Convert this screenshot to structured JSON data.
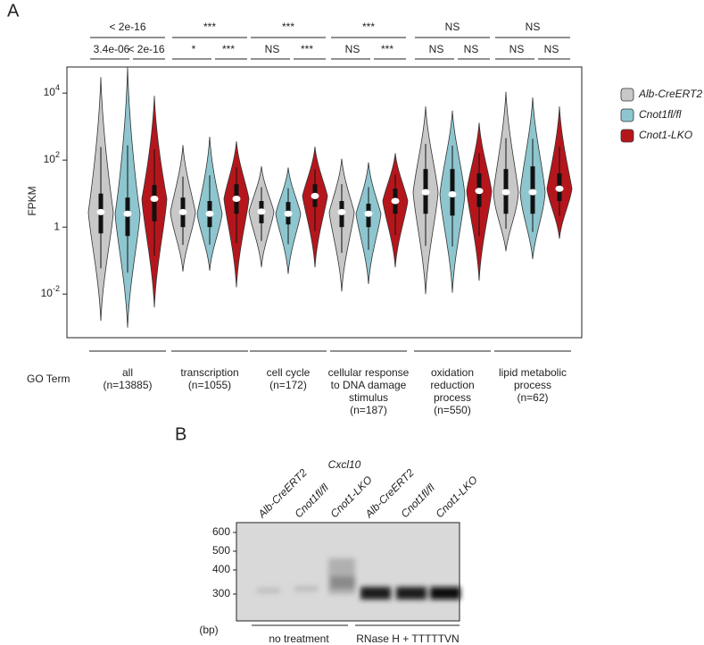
{
  "panel_labels": [
    "A",
    "B"
  ],
  "chart_data": {
    "type": "violin",
    "y_label": "FPKM",
    "x_label": "GO Term",
    "log_scale": true,
    "ylim": [
      0.0005,
      60000
    ],
    "yticks": [
      {
        "value": 0.01,
        "label": "10-2"
      },
      1,
      {
        "value": 100,
        "label": "102"
      },
      {
        "value": 10000,
        "label": "104"
      }
    ],
    "categories": [
      [
        "all",
        "(n=13885)"
      ],
      [
        "transcription",
        "(n=1055)"
      ],
      [
        "cell cycle",
        "(n=172)"
      ],
      [
        "cellular response",
        "to DNA damage",
        "stimulus",
        "(n=187)"
      ],
      [
        "oxidation",
        "reduction",
        "process",
        "(n=550)"
      ],
      [
        "lipid metabolic",
        "process",
        "(n=62)"
      ]
    ],
    "comparisons": [
      {
        "overall": "< 2e-16",
        "pairs": [
          "3.4e-06",
          "< 2e-16"
        ]
      },
      {
        "overall": "***",
        "pairs": [
          "*",
          "***"
        ]
      },
      {
        "overall": "***",
        "pairs": [
          "NS",
          "***"
        ]
      },
      {
        "overall": "***",
        "pairs": [
          "NS",
          "***"
        ]
      },
      {
        "overall": "NS",
        "pairs": [
          "NS",
          "NS"
        ]
      },
      {
        "overall": "NS",
        "pairs": [
          "NS",
          "NS"
        ]
      }
    ],
    "series": [
      {
        "name": "Alb-CreERT2",
        "color": "#c8c8c8",
        "values": [
          {
            "min": 0.0016,
            "q1": 0.65,
            "median": 2.8,
            "q3": 10,
            "max": 30000
          },
          {
            "min": 0.047,
            "q1": 1,
            "median": 2.8,
            "q3": 7.6,
            "max": 280
          },
          {
            "min": 0.063,
            "q1": 1.3,
            "median": 2.9,
            "q3": 6,
            "max": 65
          },
          {
            "min": 0.012,
            "q1": 1,
            "median": 2.8,
            "q3": 6,
            "max": 110
          },
          {
            "min": 0.01,
            "q1": 2.5,
            "median": 11,
            "q3": 54,
            "max": 4000
          },
          {
            "min": 0.19,
            "q1": 2.5,
            "median": 11,
            "q3": 54,
            "max": 11000
          }
        ]
      },
      {
        "name": "Cnot1fl/fl",
        "color": "#8ec6cf",
        "values": [
          {
            "min": 0.001,
            "q1": 0.54,
            "median": 2.5,
            "q3": 7.6,
            "max": 60000
          },
          {
            "min": 0.05,
            "q1": 1,
            "median": 2.5,
            "q3": 6,
            "max": 500
          },
          {
            "min": 0.04,
            "q1": 1.2,
            "median": 2.5,
            "q3": 5.6,
            "max": 60
          },
          {
            "min": 0.02,
            "q1": 1,
            "median": 2.5,
            "q3": 5,
            "max": 85
          },
          {
            "min": 0.011,
            "q1": 2.2,
            "median": 9.5,
            "q3": 54,
            "max": 3000
          },
          {
            "min": 0.11,
            "q1": 2.5,
            "median": 11,
            "q3": 65,
            "max": 7400
          }
        ]
      },
      {
        "name": "Cnot1-LKO",
        "color": "#b5161c",
        "values": [
          {
            "min": 0.004,
            "q1": 1.5,
            "median": 7,
            "q3": 18,
            "max": 8300
          },
          {
            "min": 0.016,
            "q1": 2.5,
            "median": 7,
            "q3": 19,
            "max": 360
          },
          {
            "min": 0.063,
            "q1": 4,
            "median": 8.5,
            "q3": 19,
            "max": 250
          },
          {
            "min": 0.063,
            "q1": 2.5,
            "median": 6,
            "q3": 14,
            "max": 160
          },
          {
            "min": 0.025,
            "q1": 4,
            "median": 12,
            "q3": 40,
            "max": 1300
          },
          {
            "min": 0.45,
            "q1": 6,
            "median": 14,
            "q3": 40,
            "max": 4000
          }
        ]
      }
    ]
  },
  "gel": {
    "title": "Cxcl10",
    "lanes": [
      "Alb-CreERT2",
      "Cnot1fl/fl",
      "Cnot1-LKO",
      "Alb-CreERT2",
      "Cnot1fl/fl",
      "Cnot1-LKO"
    ],
    "markers": [
      600,
      500,
      400,
      300
    ],
    "unit": "(bp)",
    "groups": [
      "no treatment",
      "RNase H + TTTTTVN"
    ]
  }
}
